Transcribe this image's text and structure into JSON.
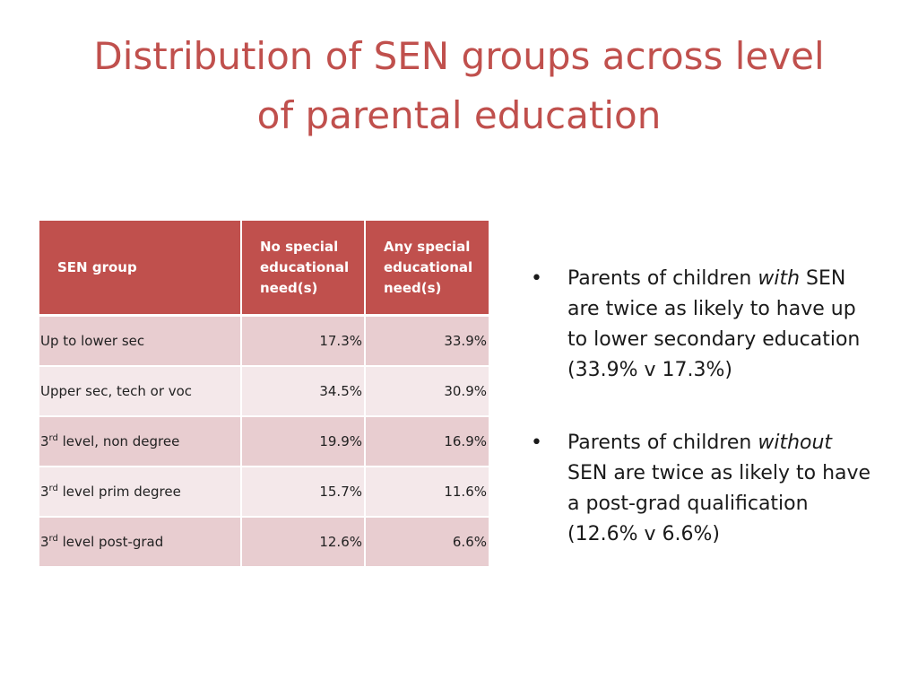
{
  "title": {
    "line1": "Distribution of SEN groups across level",
    "line2": "of parental education"
  },
  "table": {
    "headers": [
      {
        "lines": [
          "SEN group"
        ]
      },
      {
        "lines": [
          "No special",
          "educational",
          "need(s)"
        ]
      },
      {
        "lines": [
          "Any special",
          "educational",
          "need(s)"
        ]
      }
    ],
    "rows": [
      {
        "prefix": "Up to lower sec",
        "sup": "",
        "suffix": "",
        "no_sen": "17.3%",
        "any_sen": "33.9%"
      },
      {
        "prefix": "Upper sec, tech or voc",
        "sup": "",
        "suffix": "",
        "no_sen": "34.5%",
        "any_sen": "30.9%"
      },
      {
        "prefix": "3",
        "sup": "rd",
        "suffix": " level, non degree",
        "no_sen": "19.9%",
        "any_sen": "16.9%"
      },
      {
        "prefix": "3",
        "sup": "rd",
        "suffix": " level prim degree",
        "no_sen": "15.7%",
        "any_sen": "11.6%"
      },
      {
        "prefix": "3",
        "sup": "rd",
        "suffix": " level post-grad",
        "no_sen": "12.6%",
        "any_sen": "6.6%"
      }
    ],
    "colors": {
      "header_bg": "#c0504d",
      "row_odd": "#e8cdd0",
      "row_even": "#f4e8ea"
    }
  },
  "bullets": [
    {
      "marker": "•",
      "before": "Parents of children ",
      "emph": "with",
      "after": " SEN are twice as likely to have up to lower secondary education (33.9% v 17.3%)"
    },
    {
      "marker": "•",
      "before": "Parents of children ",
      "emph": "without",
      "after": " SEN are twice as likely to have a post-grad qualification (12.6% v 6.6%)"
    }
  ],
  "theme": {
    "title_color": "#c0504d"
  }
}
